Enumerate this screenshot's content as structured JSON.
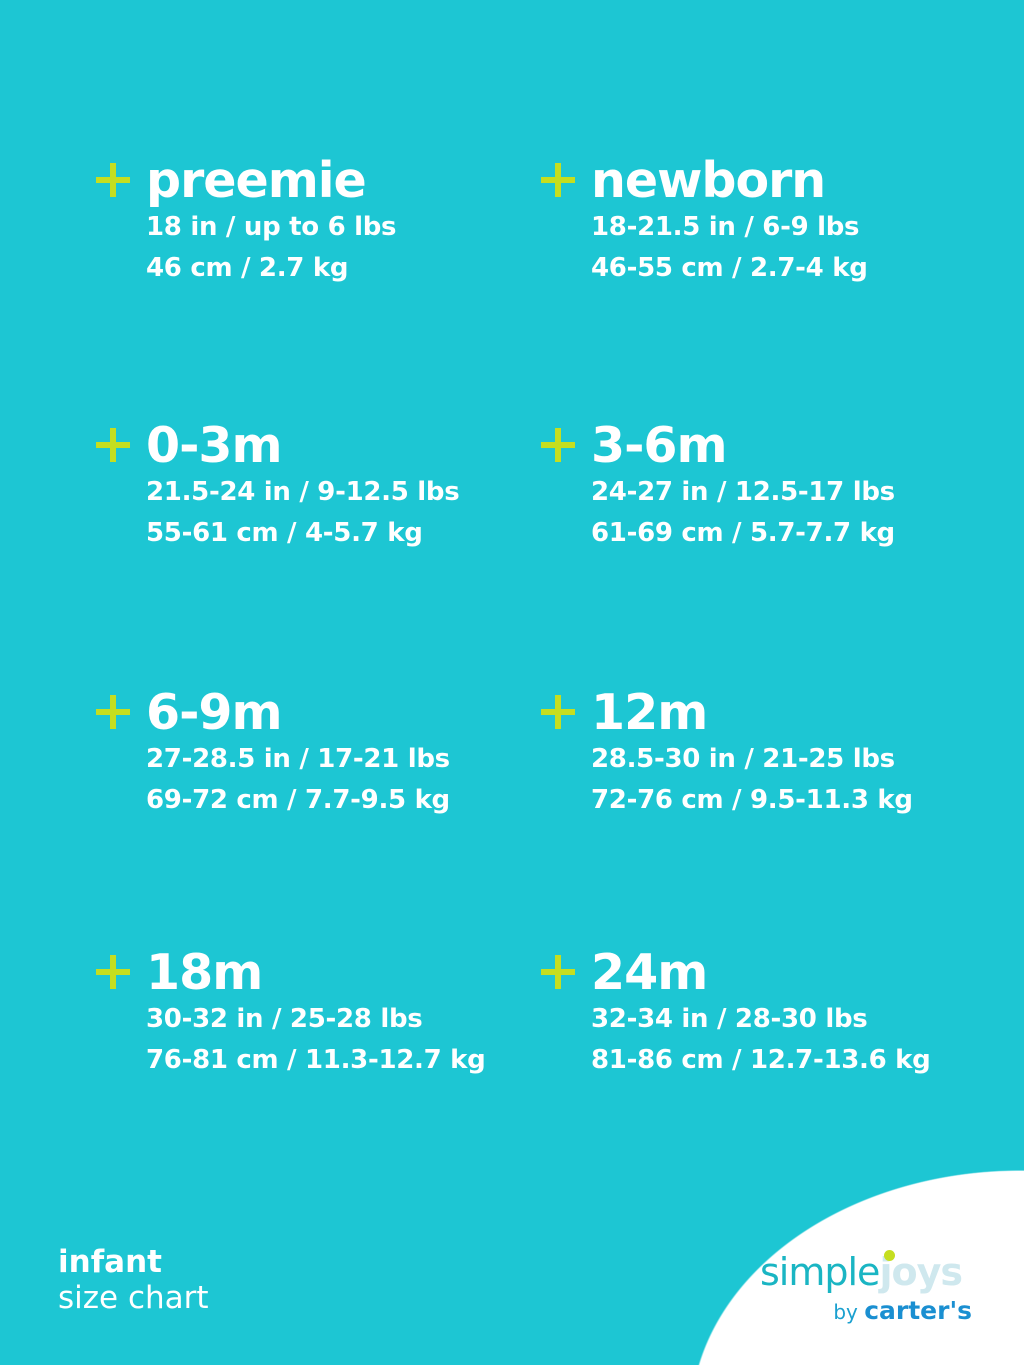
{
  "entries": [
    {
      "size": "preemie",
      "imperial": "18 in / up to 6 lbs",
      "metric": "46 cm / 2.7 kg"
    },
    {
      "size": "newborn",
      "imperial": "18-21.5 in / 6-9 lbs",
      "metric": "46-55 cm / 2.7-4 kg"
    },
    {
      "size": "0-3m",
      "imperial": "21.5-24 in / 9-12.5 lbs",
      "metric": "55-61 cm / 4-5.7 kg"
    },
    {
      "size": "3-6m",
      "imperial": "24-27 in / 12.5-17 lbs",
      "metric": "61-69 cm / 5.7-7.7 kg"
    },
    {
      "size": "6-9m",
      "imperial": "27-28.5 in / 17-21 lbs",
      "metric": "69-72 cm / 7.7-9.5 kg"
    },
    {
      "size": "12m",
      "imperial": "28.5-30 in / 21-25 lbs",
      "metric": "72-76 cm / 9.5-11.3 kg"
    },
    {
      "size": "18m",
      "imperial": "30-32 in / 25-28 lbs",
      "metric": "76-81 cm / 11.3-12.7 kg"
    },
    {
      "size": "24m",
      "imperial": "32-34 in / 28-30 lbs",
      "metric": "81-86 cm / 12.7-13.6 kg"
    }
  ],
  "footer": {
    "line1": "infant",
    "line2": "size chart"
  },
  "logo": {
    "word1": "simple",
    "word2": "joys",
    "by": "by",
    "brand": "carter's"
  },
  "colors": {
    "background": "#1dc6d3",
    "accent": "#c5de20",
    "text": "#ffffff"
  }
}
